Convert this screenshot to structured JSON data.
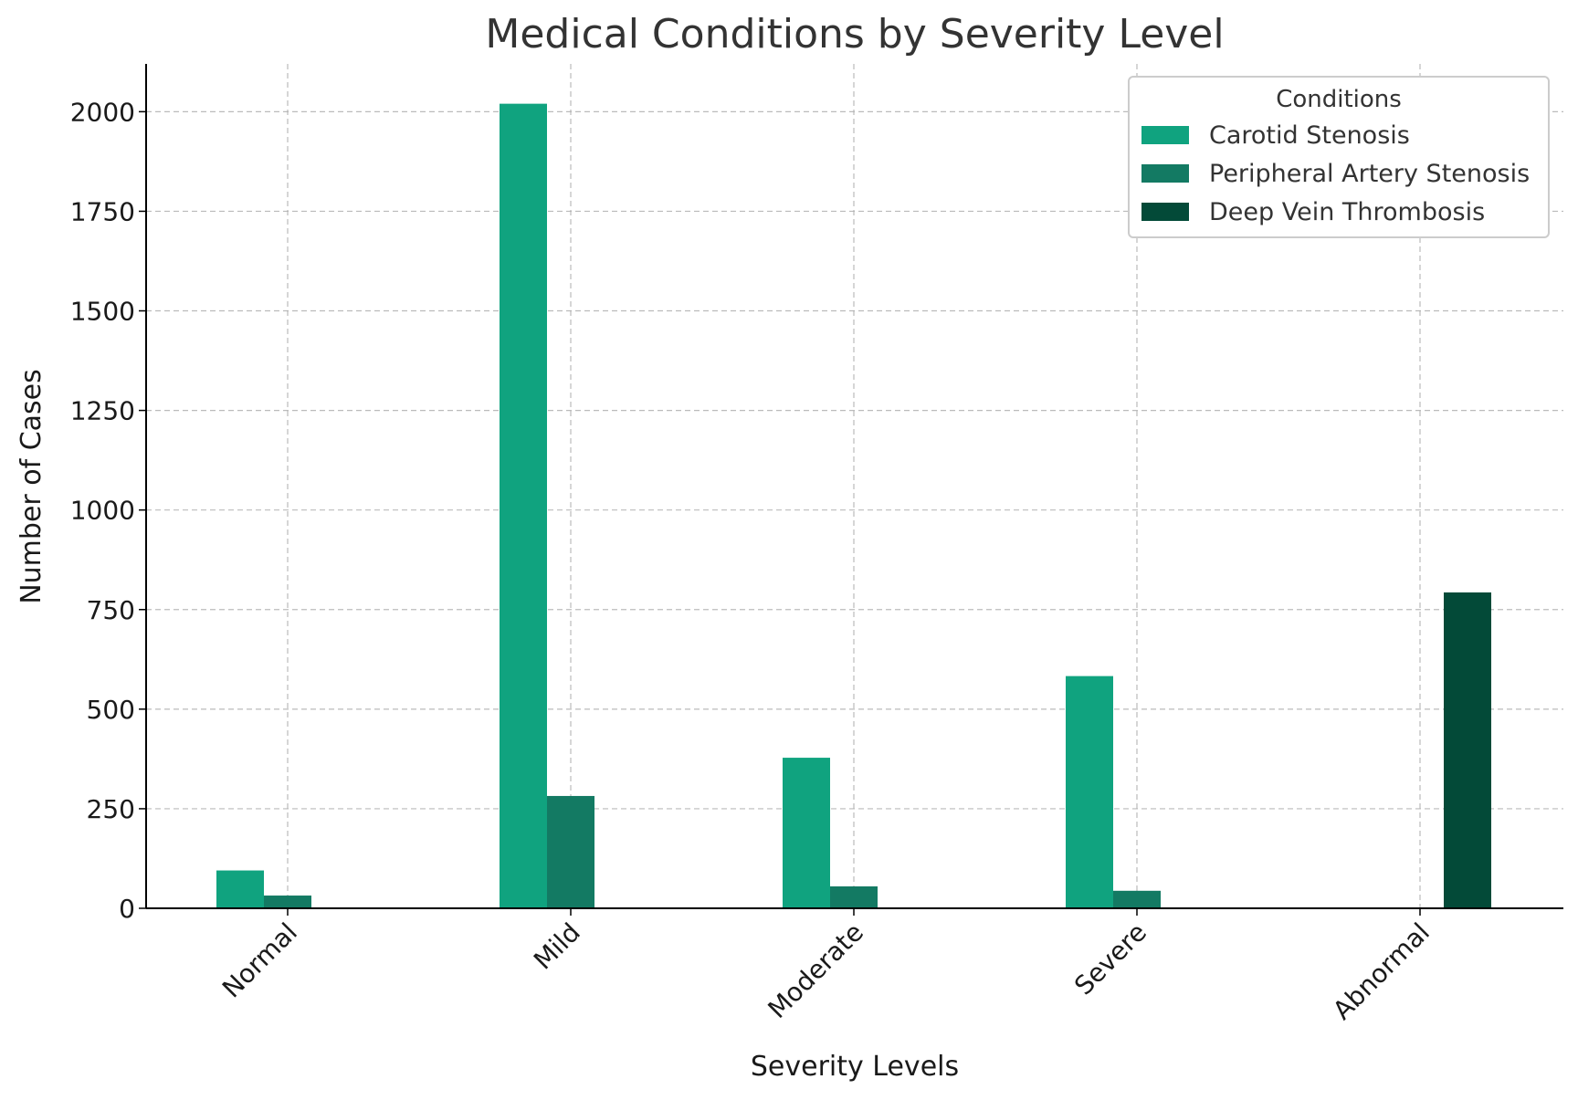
{
  "chart_data": {
    "type": "bar",
    "title": "Medical Conditions by Severity Level",
    "xlabel": "Severity Levels",
    "ylabel": "Number of Cases",
    "categories": [
      "Normal",
      "Mild",
      "Moderate",
      "Severe",
      "Abnormal"
    ],
    "series": [
      {
        "name": "Carotid Stenosis",
        "color": "#10a37f",
        "values": [
          95,
          2020,
          378,
          583,
          0
        ]
      },
      {
        "name": "Peripheral Artery Stenosis",
        "color": "#137a63",
        "values": [
          32,
          282,
          55,
          44,
          0
        ]
      },
      {
        "name": "Deep Vein Thrombosis",
        "color": "#034a38",
        "values": [
          0,
          0,
          0,
          0,
          793
        ]
      }
    ],
    "ylim": [
      0,
      2120
    ],
    "yticks": [
      0,
      250,
      500,
      750,
      1000,
      1250,
      1500,
      1750,
      2000
    ],
    "grid": true,
    "legend": {
      "title": "Conditions",
      "position": "upper-right"
    }
  }
}
